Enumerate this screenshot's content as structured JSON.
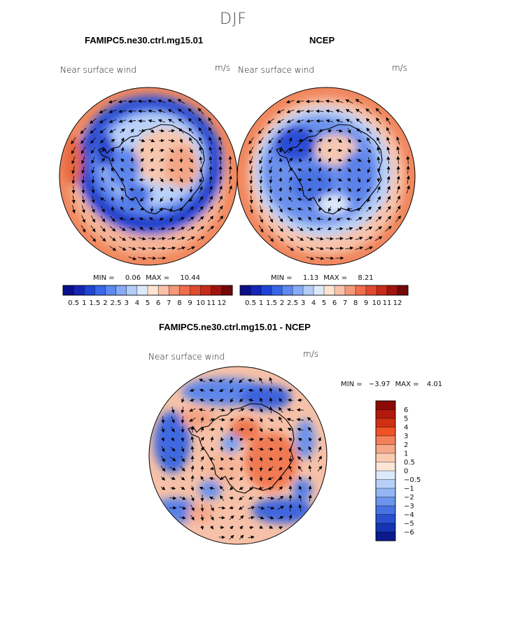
{
  "figure": {
    "season": "DJF",
    "panels": [
      {
        "title": "FAMIPC5.ne30.ctrl.mg15.01",
        "field": "Near surface wind",
        "units": "m/s",
        "min_label": "MIN =",
        "min": "0.06",
        "max_label": "MAX =",
        "max": "10.44"
      },
      {
        "title": "NCEP",
        "field": "Near surface wind",
        "units": "m/s",
        "min_label": "MIN =",
        "min": "1.13",
        "max_label": "MAX =",
        "max": "8.21"
      },
      {
        "title": "FAMIPC5.ne30.ctrl.mg15.01 - NCEP",
        "field": "Near surface wind",
        "units": "m/s",
        "min_label": "MIN =",
        "min": "−3.97",
        "max_label": "MAX =",
        "max": "4.01"
      }
    ]
  },
  "chart_data": [
    {
      "type": "heatmap",
      "projection": "south polar stereographic",
      "title": "FAMIPC5.ne30.ctrl.mg15.01",
      "variable": "Near surface wind",
      "units": "m/s",
      "min": 0.06,
      "max": 10.44,
      "colorbar": {
        "orientation": "horizontal",
        "labels": [
          "0.5",
          "1",
          "1.5",
          "2",
          "2.5",
          "3",
          "4",
          "5",
          "6",
          "7",
          "8",
          "9",
          "10",
          "11",
          "12"
        ],
        "colors": [
          "#0a0f8a",
          "#1424b4",
          "#1f43d6",
          "#3a66e8",
          "#5d88ef",
          "#87aaf5",
          "#b3cdf8",
          "#dbe9fb",
          "#fde4d2",
          "#f9c2a8",
          "#f4987a",
          "#ee6f4d",
          "#e24a2e",
          "#c62a1a",
          "#9e1410",
          "#720808"
        ]
      }
    },
    {
      "type": "heatmap",
      "projection": "south polar stereographic",
      "title": "NCEP",
      "variable": "Near surface wind",
      "units": "m/s",
      "min": 1.13,
      "max": 8.21,
      "colorbar": {
        "orientation": "horizontal",
        "labels": [
          "0.5",
          "1",
          "1.5",
          "2",
          "2.5",
          "3",
          "4",
          "5",
          "6",
          "7",
          "8",
          "9",
          "10",
          "11",
          "12"
        ],
        "colors": [
          "#0a0f8a",
          "#1424b4",
          "#1f43d6",
          "#3a66e8",
          "#5d88ef",
          "#87aaf5",
          "#b3cdf8",
          "#dbe9fb",
          "#fde4d2",
          "#f9c2a8",
          "#f4987a",
          "#ee6f4d",
          "#e24a2e",
          "#c62a1a",
          "#9e1410",
          "#720808"
        ]
      }
    },
    {
      "type": "heatmap",
      "projection": "south polar stereographic",
      "title": "FAMIPC5.ne30.ctrl.mg15.01 - NCEP",
      "variable": "Near surface wind",
      "units": "m/s",
      "min": -3.97,
      "max": 4.01,
      "colorbar": {
        "orientation": "vertical",
        "labels": [
          "6",
          "5",
          "4",
          "3",
          "2",
          "1",
          "0.5",
          "0",
          "−0.5",
          "−1",
          "−2",
          "−3",
          "−4",
          "−5",
          "−6"
        ],
        "colors": [
          "#8c0a06",
          "#b0190c",
          "#cf3012",
          "#ef5224",
          "#f2805a",
          "#f5a988",
          "#f9cbb3",
          "#fde6d8",
          "#dce9fb",
          "#b8d0f7",
          "#94b6f2",
          "#6c94ec",
          "#4672e2",
          "#2a50cf",
          "#1634b1",
          "#0b1a8d"
        ]
      }
    }
  ],
  "colors": {
    "strong_blue": "#1f3fd0",
    "mid_blue": "#4f77e6",
    "light_blue": "#bcd4f8",
    "pale": "#f6efe8",
    "light_red": "#f5b89e",
    "mid_red": "#ee7b56",
    "strong_red": "#d9502f",
    "coast": "#000000",
    "arrow": "#000000"
  }
}
